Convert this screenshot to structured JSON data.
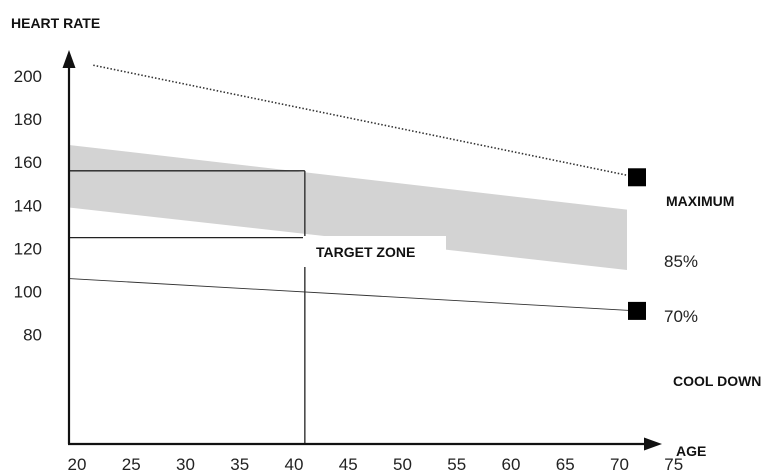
{
  "chart_data": {
    "type": "line",
    "title": "",
    "xlabel": "AGE",
    "ylabel": "HEART RATE",
    "xlim": [
      20,
      76
    ],
    "ylim": [
      62,
      212
    ],
    "x_ticks": [
      "20",
      "25",
      "30",
      "35",
      "40",
      "45",
      "50",
      "55",
      "60",
      "65",
      "70",
      "75"
    ],
    "y_ticks": [
      "200",
      "180",
      "160",
      "140",
      "120",
      "100",
      "80"
    ],
    "grid": false,
    "series": [
      {
        "name": "MAXIMUM",
        "x": [
          21.5,
          76
        ],
        "y": [
          205,
          153
        ],
        "style": "dotted",
        "marker_end": true
      },
      {
        "name": "COOL DOWN",
        "x": [
          20,
          76
        ],
        "y": [
          106,
          91
        ],
        "style": "solid-thin",
        "marker_end": true
      }
    ],
    "band": {
      "name": "TARGET ZONE",
      "x": [
        20,
        76
      ],
      "upper": [
        168,
        138
      ],
      "lower": [
        139,
        110
      ],
      "upper_label": "85%",
      "lower_label": "70%"
    },
    "guides": {
      "age": 41,
      "heart_rates": [
        156,
        125
      ]
    },
    "colors": {
      "band": "#d3d3d3",
      "axis": "#111111",
      "marker": "#000000"
    }
  }
}
